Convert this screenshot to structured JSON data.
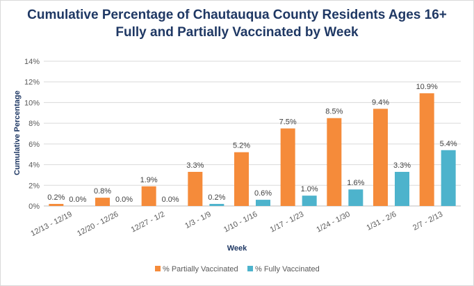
{
  "chart_data": {
    "type": "bar",
    "title_line1": "Cumulative Percentage of Chautauqua County Residents Ages 16+",
    "title_line2": "Fully and Partially Vaccinated by Week",
    "xlabel": "Week",
    "ylabel": "Cumulative Percentage",
    "categories": [
      "12/13 - 12/19",
      "12/20 - 12/26",
      "12/27 - 1/2",
      "1/3 - 1/9",
      "1/10 - 1/16",
      "1/17 - 1/23",
      "1/24 - 1/30",
      "1/31 - 2/6",
      "2/7 - 2/13"
    ],
    "series": [
      {
        "name": "% Partially Vaccinated",
        "values": [
          0.2,
          0.8,
          1.9,
          3.3,
          5.2,
          7.5,
          8.5,
          9.4,
          10.9
        ],
        "labels": [
          "0.2%",
          "0.8%",
          "1.9%",
          "3.3%",
          "5.2%",
          "7.5%",
          "8.5%",
          "9.4%",
          "10.9%"
        ],
        "color": "#f58b3a"
      },
      {
        "name": "% Fully Vaccinated",
        "values": [
          0.0,
          0.0,
          0.0,
          0.2,
          0.6,
          1.0,
          1.6,
          3.3,
          5.4
        ],
        "labels": [
          "0.0%",
          "0.0%",
          "0.0%",
          "0.2%",
          "0.6%",
          "1.0%",
          "1.6%",
          "3.3%",
          "5.4%"
        ],
        "color": "#4db3cc"
      }
    ],
    "ylim": [
      0,
      14
    ],
    "yticks": [
      0,
      2,
      4,
      6,
      8,
      10,
      12,
      14
    ],
    "ytick_labels": [
      "0%",
      "2%",
      "4%",
      "6%",
      "8%",
      "10%",
      "12%",
      "14%"
    ],
    "grid": true,
    "legend_position": "bottom"
  }
}
